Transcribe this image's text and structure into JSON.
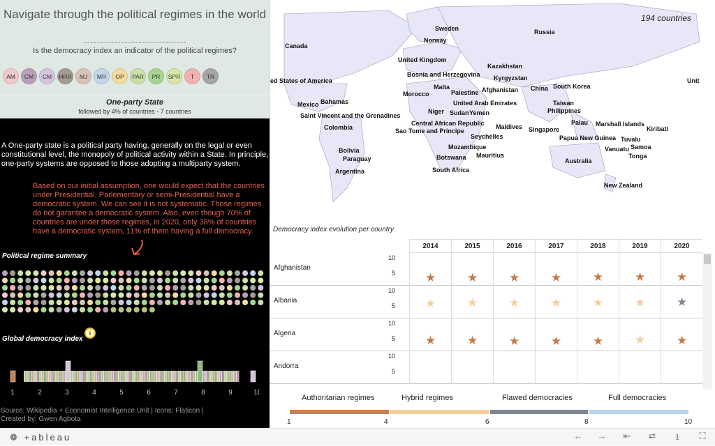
{
  "header": {
    "title": "Navigate through the political regimes in the world",
    "rule": "-------------------------------------",
    "subtitle": "Is the democracy index an indicator of the political regimes?"
  },
  "regime_buttons": [
    {
      "label": "AM",
      "color": "#f2c9c9"
    },
    {
      "label": "CM",
      "color": "#b8a1b8"
    },
    {
      "label": "CM",
      "color": "#d6c4dd"
    },
    {
      "label": "HRR",
      "color": "#a59b93"
    },
    {
      "label": "MJ",
      "color": "#d9c3b8"
    },
    {
      "label": "MR",
      "color": "#c2d6ea"
    },
    {
      "label": "OP",
      "color": "#f3dba0"
    },
    {
      "label": "PAR",
      "color": "#c9e0a8"
    },
    {
      "label": "PR",
      "color": "#a7d58f"
    },
    {
      "label": "SPR",
      "color": "#d9e7a4"
    },
    {
      "label": "T",
      "color": "#f3b2b2"
    },
    {
      "label": "TR",
      "color": "#a6a6a6"
    }
  ],
  "selection": {
    "title": "One-party State",
    "sub": "followed by 4% of countries - 7 countries"
  },
  "description": "A One-party state is a political party having, generally on the legal or even constitutional level, the monopoly of political activity within a State. In principle, one-party systems are opposed to those adopting a multiparty system.",
  "assumption": "Based on our initial assumption, one would expect that the countries under Presidential, Parlementary or semi-Presidential have a democratic system. We can see it is not systematic. Those regimes do not garantee a democratic system. Also, even though 70% of countries are under those regimes, in 2020, only 38% of countries have a democratic system, 11% of them having a full democracy.",
  "summary_label": "Political regime summary",
  "gdi_label": "Global democracy index",
  "gdi_ticks": [
    "1",
    "2",
    "3",
    "4",
    "5",
    "6",
    "7",
    "8",
    "9",
    "10"
  ],
  "source": "Source: Wikipedia + Economist Intelligence Unit | Icons: Flaticon |",
  "created": "Created by: Gwen Agbota",
  "map": {
    "count": "194 countries",
    "labels": [
      "Sweden",
      "Russia",
      "Norway",
      "Canada",
      "United Kingdom",
      "Kazakhstan",
      "Bosnia and Herzegovina",
      "Kyrgyzstan",
      "ed States of America",
      "Malta",
      "China",
      "South Korea",
      "Unit",
      "Morocco",
      "Palestine",
      "Afghanistan",
      "Bahamas",
      "United Arab Emirates",
      "Taiwan",
      "Mexico",
      "Niger",
      "Sudan",
      "Yemen",
      "Philippines",
      "Saint Vincent and the Grenadines",
      "Central African Republic",
      "Palau",
      "Marshall Islands",
      "Colombia",
      "Sao Tome and Principe",
      "Maldives",
      "Singapore",
      "Kiribati",
      "Seychelles",
      "Papua New Guinea",
      "Tuvalu",
      "Mozambique",
      "Vanuatu",
      "Samoa",
      "Bolivia",
      "Mauritius",
      "Tonga",
      "Paraguay",
      "Botswana",
      "Australia",
      "Argentina",
      "South Africa",
      "New Zealand"
    ]
  },
  "table": {
    "title": "Democracy index evolution per country",
    "years": [
      "2014",
      "2015",
      "2016",
      "2017",
      "2018",
      "2019",
      "2020"
    ],
    "axis": [
      "10",
      "5"
    ],
    "rows": [
      {
        "name": "Afghanistan",
        "values": [
          2.77,
          2.77,
          2.55,
          2.55,
          2.97,
          2.85,
          2.85
        ],
        "colors": [
          "#c47a48",
          "#c47a48",
          "#c47a48",
          "#c47a48",
          "#c47a48",
          "#c47a48",
          "#c47a48"
        ]
      },
      {
        "name": "Albania",
        "values": [
          5.67,
          5.91,
          5.91,
          5.98,
          5.98,
          5.89,
          6.08
        ],
        "colors": [
          "#f4cf9e",
          "#f4cf9e",
          "#f4cf9e",
          "#f4cf9e",
          "#f4cf9e",
          "#f4cf9e",
          "#808590"
        ]
      },
      {
        "name": "Algeria",
        "values": [
          3.83,
          3.95,
          3.56,
          3.56,
          3.5,
          4.01,
          3.77
        ],
        "colors": [
          "#c47a48",
          "#c47a48",
          "#c47a48",
          "#c47a48",
          "#c47a48",
          "#f4cf9e",
          "#c47a48"
        ]
      },
      {
        "name": "Andorra",
        "values": [],
        "colors": []
      }
    ]
  },
  "legend": {
    "items": [
      {
        "label": "Authoritarian regimes",
        "color": "#c9824f"
      },
      {
        "label": "Hybrid regimes",
        "color": "#f4cf9e"
      },
      {
        "label": "Flawed democracies",
        "color": "#7f8591"
      },
      {
        "label": "Full democracies",
        "color": "#b9d4ec"
      }
    ],
    "ticks": [
      "1",
      "4",
      "6",
      "8",
      "10"
    ]
  },
  "toolbar": {
    "logo": "+ableau",
    "icons": [
      "undo-icon",
      "redo-icon",
      "revert-icon",
      "share-icon",
      "download-icon",
      "fullscreen-icon"
    ]
  }
}
